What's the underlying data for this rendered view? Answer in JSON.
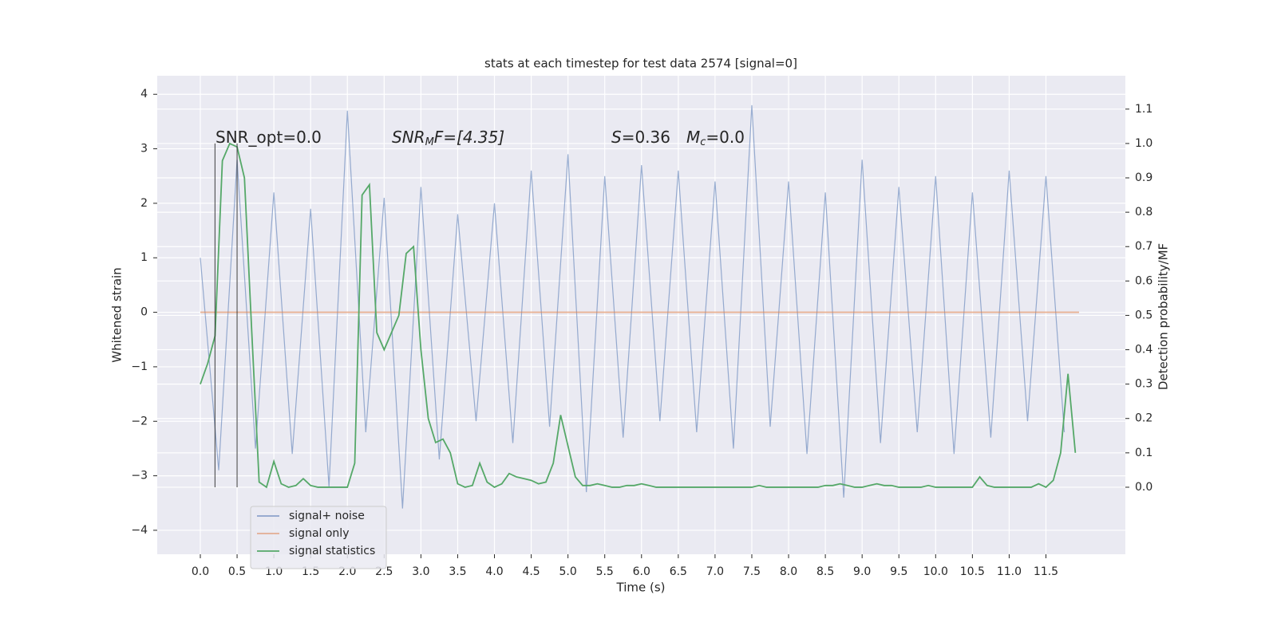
{
  "chart_data": {
    "type": "line",
    "title": "stats at each timestep for test data 2574 [signal=0]",
    "xlabel": "Time (s)",
    "ylabel": "Whitened strain",
    "y2label": "Detection probability/MF",
    "annotations": [
      [
        "SNR_opt=0.0"
      ],
      [
        "SNR",
        "M",
        "F=[4.35]"
      ],
      [
        "S",
        "=0.36",
        "M",
        "c",
        "=0.0"
      ]
    ],
    "xlim": [
      -0.586,
      12.58
    ],
    "ylim": [
      -4.44,
      4.34
    ],
    "y2lim": [
      -0.195,
      1.197
    ],
    "grid": true,
    "legend": "lower left",
    "xticks": [
      {
        "value": 0,
        "label": "0.0"
      },
      0.5,
      {
        "value": 1,
        "label": "1.0"
      },
      1.5,
      {
        "value": 2,
        "label": "2.0"
      },
      2.5,
      {
        "value": 3,
        "label": "3.0"
      },
      3.5,
      {
        "value": 4,
        "label": "4.0"
      },
      4.5,
      {
        "value": 5,
        "label": "5.0"
      },
      5.5,
      {
        "value": 6,
        "label": "6.0"
      },
      6.5,
      {
        "value": 7,
        "label": "7.0"
      },
      7.5,
      {
        "value": 8,
        "label": "8.0"
      },
      8.5,
      {
        "value": 9,
        "label": "9.0"
      },
      9.5,
      {
        "value": 10,
        "label": "10.0"
      },
      10.5,
      {
        "value": 11,
        "label": "11.0"
      },
      11.5
    ],
    "yticks": [
      {
        "value": -4,
        "label": "−4"
      },
      {
        "value": -3,
        "label": "−3"
      },
      {
        "value": -2,
        "label": "−2"
      },
      {
        "value": -1,
        "label": "−1"
      },
      0,
      1,
      2,
      3,
      4
    ],
    "y2ticks": [
      {
        "value": 0,
        "label": "0.0"
      },
      0.1,
      0.2,
      0.3,
      0.4,
      0.5,
      0.6,
      0.7,
      0.8,
      0.9,
      {
        "value": 1,
        "label": "1.0"
      },
      1.1
    ],
    "vlines": [
      0.2,
      0.5
    ],
    "series": [
      {
        "name": "signal+ noise",
        "color": "#4c72b0",
        "x": [
          0,
          0.25,
          0.5,
          0.75,
          1,
          1.25,
          1.5,
          1.75,
          2,
          2.25,
          2.5,
          2.75,
          3,
          3.25,
          3.5,
          3.75,
          4,
          4.25,
          4.5,
          4.75,
          5,
          5.25,
          5.5,
          5.75,
          6,
          6.25,
          6.5,
          6.75,
          7,
          7.25,
          7.5,
          7.75,
          8,
          8.25,
          8.5,
          8.75,
          9,
          9.25,
          9.5,
          9.75,
          10,
          10.25,
          10.5,
          10.75,
          11,
          11.25,
          11.5,
          11.75
        ],
        "values": [
          1.0,
          -2.9,
          2.8,
          -2.5,
          2.2,
          -2.6,
          1.9,
          -3.2,
          3.7,
          -2.2,
          2.1,
          -3.6,
          2.3,
          -2.7,
          1.8,
          -2.0,
          2.0,
          -2.4,
          2.6,
          -2.1,
          2.9,
          -3.3,
          2.5,
          -2.3,
          2.7,
          -2.0,
          2.6,
          -2.2,
          2.4,
          -2.5,
          3.8,
          -2.1,
          2.4,
          -2.6,
          2.2,
          -3.4,
          2.8,
          -2.4,
          2.3,
          -2.2,
          2.5,
          -2.6,
          2.2,
          -2.3,
          2.6,
          -2.0,
          2.5,
          -2.2
        ]
      },
      {
        "name": "signal only",
        "color": "#dd8452",
        "x": [
          0,
          11.95
        ],
        "values": [
          0,
          0
        ]
      },
      {
        "name": "signal statistics",
        "color": "#55a868",
        "axis": "y2",
        "x": [
          0,
          0.1,
          0.2,
          0.3,
          0.4,
          0.5,
          0.6,
          0.7,
          0.8,
          0.9,
          1,
          1.1,
          1.2,
          1.3,
          1.4,
          1.5,
          1.6,
          1.7,
          1.8,
          1.9,
          2,
          2.1,
          2.2,
          2.3,
          2.4,
          2.5,
          2.6,
          2.7,
          2.8,
          2.9,
          3,
          3.1,
          3.2,
          3.3,
          3.4,
          3.5,
          3.6,
          3.7,
          3.8,
          3.9,
          4,
          4.1,
          4.2,
          4.3,
          4.4,
          4.5,
          4.6,
          4.7,
          4.8,
          4.9,
          5,
          5.1,
          5.2,
          5.3,
          5.4,
          5.5,
          5.6,
          5.7,
          5.8,
          5.9,
          6,
          6.1,
          6.2,
          6.3,
          6.4,
          6.5,
          6.6,
          6.7,
          6.8,
          6.9,
          7,
          7.1,
          7.2,
          7.3,
          7.4,
          7.5,
          7.6,
          7.7,
          7.8,
          7.9,
          8,
          8.1,
          8.2,
          8.3,
          8.4,
          8.5,
          8.6,
          8.7,
          8.8,
          8.9,
          9,
          9.1,
          9.2,
          9.3,
          9.4,
          9.5,
          9.6,
          9.7,
          9.8,
          9.9,
          10,
          10.1,
          10.2,
          10.3,
          10.4,
          10.5,
          10.6,
          10.7,
          10.8,
          10.9,
          11,
          11.1,
          11.2,
          11.3,
          11.4,
          11.5,
          11.6,
          11.7,
          11.8,
          11.9
        ],
        "values": [
          0.3,
          0.36,
          0.44,
          0.95,
          1.0,
          0.99,
          0.9,
          0.45,
          0.015,
          0.0,
          0.075,
          0.01,
          0.0,
          0.005,
          0.025,
          0.005,
          0.0,
          0.0,
          0.0,
          0.0,
          0.0,
          0.07,
          0.85,
          0.88,
          0.45,
          0.4,
          0.45,
          0.5,
          0.68,
          0.7,
          0.4,
          0.2,
          0.13,
          0.14,
          0.1,
          0.01,
          0.0,
          0.005,
          0.07,
          0.015,
          0.0,
          0.01,
          0.04,
          0.03,
          0.025,
          0.02,
          0.01,
          0.015,
          0.07,
          0.21,
          0.12,
          0.03,
          0.005,
          0.005,
          0.01,
          0.005,
          0.0,
          0.0,
          0.005,
          0.005,
          0.01,
          0.005,
          0.0,
          0.0,
          0.0,
          0.0,
          0.0,
          0.0,
          0.0,
          0.0,
          0.0,
          0.0,
          0.0,
          0.0,
          0.0,
          0.0,
          0.005,
          0.0,
          0.0,
          0.0,
          0.0,
          0.0,
          0.0,
          0.0,
          0.0,
          0.005,
          0.005,
          0.01,
          0.005,
          0.0,
          0.0,
          0.005,
          0.01,
          0.005,
          0.005,
          0.0,
          0.0,
          0.0,
          0.0,
          0.005,
          0.0,
          0.0,
          0.0,
          0.0,
          0.0,
          0.0,
          0.03,
          0.005,
          0.0,
          0.0,
          0.0,
          0.0,
          0.0,
          0.0,
          0.01,
          0.0,
          0.02,
          0.1,
          0.33,
          0.1
        ]
      }
    ]
  }
}
